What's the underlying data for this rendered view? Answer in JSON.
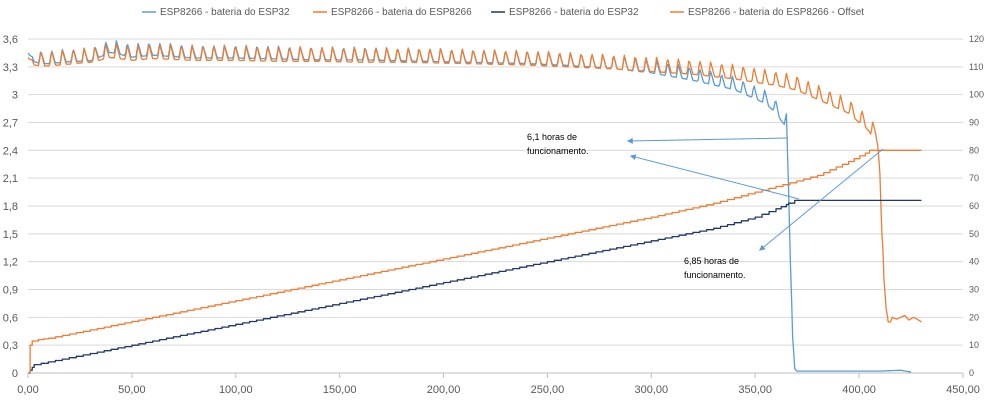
{
  "chart_data": {
    "type": "line",
    "title": "",
    "xlabel": "",
    "ylabel": "",
    "xlim": [
      0,
      450
    ],
    "ylim": [
      0,
      3.6
    ],
    "y2lim": [
      0,
      120
    ],
    "grid": true,
    "legend_position": "top",
    "x_ticks": [
      "0,00",
      "50,00",
      "100,00",
      "150,00",
      "200,00",
      "250,00",
      "300,00",
      "350,00",
      "400,00",
      "450,00"
    ],
    "y_ticks": [
      "0",
      "0,3",
      "0,6",
      "0,9",
      "1,2",
      "1,5",
      "1,8",
      "2,1",
      "2,4",
      "2,7",
      "3",
      "3,3",
      "3,6"
    ],
    "y2_ticks": [
      "0",
      "10",
      "20",
      "30",
      "40",
      "50",
      "60",
      "70",
      "80",
      "90",
      "100",
      "110",
      "120"
    ],
    "series": [
      {
        "name": "ESP8266 - bateria do ESP32",
        "color": "#5b9bd5",
        "axis": "left",
        "x": [
          0,
          1,
          3,
          6,
          10,
          20,
          30,
          40,
          50,
          60,
          80,
          100,
          120,
          140,
          160,
          180,
          200,
          220,
          240,
          260,
          280,
          300,
          320,
          330,
          340,
          345,
          350,
          355,
          360,
          363,
          365,
          366,
          367,
          368,
          369,
          370,
          380,
          390,
          400,
          410,
          420,
          425
        ],
        "y": [
          3.45,
          3.42,
          3.4,
          3.38,
          3.38,
          3.4,
          3.41,
          3.5,
          3.45,
          3.47,
          3.44,
          3.44,
          3.43,
          3.42,
          3.42,
          3.41,
          3.4,
          3.39,
          3.38,
          3.36,
          3.33,
          3.28,
          3.2,
          3.15,
          3.1,
          3.05,
          3.0,
          2.95,
          2.85,
          2.75,
          2.7,
          2.0,
          1.2,
          0.4,
          0.05,
          0.02,
          0.02,
          0.02,
          0.02,
          0.02,
          0.03,
          0.01
        ],
        "osc_amp": 0.09
      },
      {
        "name": "ESP8266 - bateria do ESP8266",
        "color": "#ed7d31",
        "axis": "left",
        "x": [
          0,
          1,
          3,
          6,
          10,
          20,
          30,
          40,
          50,
          60,
          80,
          100,
          120,
          140,
          160,
          180,
          200,
          220,
          240,
          260,
          280,
          300,
          320,
          340,
          360,
          370,
          380,
          390,
          395,
          400,
          403,
          405,
          406,
          407,
          408,
          409,
          410,
          411,
          412,
          413,
          414,
          415,
          416,
          418,
          420,
          422,
          424,
          426,
          428,
          430
        ],
        "y": [
          3.4,
          3.38,
          3.37,
          3.36,
          3.36,
          3.38,
          3.4,
          3.45,
          3.42,
          3.44,
          3.42,
          3.42,
          3.41,
          3.41,
          3.4,
          3.4,
          3.39,
          3.38,
          3.37,
          3.35,
          3.33,
          3.3,
          3.27,
          3.22,
          3.15,
          3.1,
          3.0,
          2.9,
          2.85,
          2.75,
          2.7,
          2.65,
          2.6,
          2.6,
          2.6,
          2.5,
          2.2,
          1.5,
          1.0,
          0.7,
          0.55,
          0.55,
          0.6,
          0.58,
          0.6,
          0.62,
          0.57,
          0.6,
          0.58,
          0.55
        ],
        "osc_amp": 0.1
      },
      {
        "name": "ESP8266 - bateria do ESP32",
        "color": "#203864",
        "axis": "right",
        "x": [
          0,
          1,
          2,
          3,
          30,
          60,
          90,
          120,
          150,
          180,
          210,
          240,
          270,
          300,
          330,
          350,
          360,
          365,
          366,
          369,
          380,
          400,
          420,
          430
        ],
        "y": [
          0,
          1,
          2,
          3,
          7,
          11.5,
          16,
          20.5,
          25,
          29.5,
          34,
          38.5,
          43,
          47.5,
          52,
          56,
          59,
          60.5,
          61,
          62,
          62,
          62,
          62,
          62
        ]
      },
      {
        "name": "ESP8266 - bateria do ESP8266 - Offset",
        "color": "#ed7d31",
        "axis": "right",
        "x": [
          0,
          1,
          2,
          5,
          10,
          30,
          60,
          90,
          120,
          150,
          180,
          210,
          240,
          270,
          300,
          330,
          360,
          380,
          395,
          403,
          405,
          406,
          410,
          420,
          430
        ],
        "y": [
          0,
          10,
          11.5,
          12,
          12.5,
          15.5,
          20,
          24.5,
          29,
          33.5,
          38,
          42.5,
          47,
          51.5,
          56,
          61,
          67,
          71,
          76,
          79,
          80,
          80,
          80,
          80,
          80
        ]
      }
    ],
    "annotations": [
      {
        "lines": [
          "6,1 horas de",
          "funcionamento."
        ],
        "x": 0.23,
        "y": 0.2
      },
      {
        "lines": [
          "6,85 horas de",
          "funcionamento."
        ],
        "x": 0.4,
        "y": 0.87
      }
    ]
  }
}
